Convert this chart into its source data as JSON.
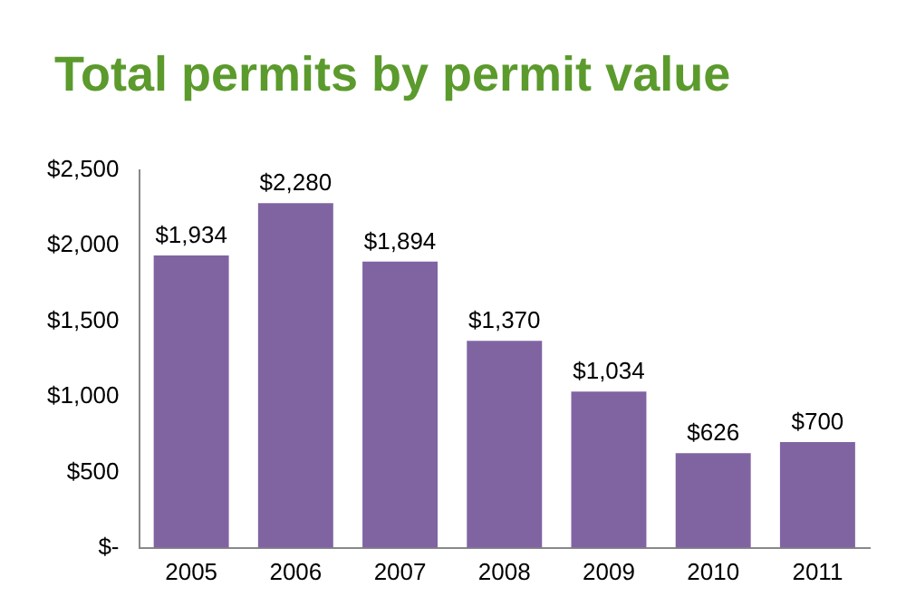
{
  "chart_data": {
    "type": "bar",
    "title": "Total permits by permit value",
    "categories": [
      "2005",
      "2006",
      "2007",
      "2008",
      "2009",
      "2010",
      "2011"
    ],
    "values": [
      1934,
      2280,
      1894,
      1370,
      1034,
      626,
      700
    ],
    "value_labels": [
      "$1,934",
      "$2,280",
      "$1,894",
      "$1,370",
      "$1,034",
      "$626",
      "$700"
    ],
    "color": "#8064a2",
    "ylim": [
      0,
      2500
    ],
    "yticks": [
      {
        "value": 0,
        "label": "$-"
      },
      {
        "value": 500,
        "label": "$500"
      },
      {
        "value": 1000,
        "label": "$1,000"
      },
      {
        "value": 1500,
        "label": "$1,500"
      },
      {
        "value": 2000,
        "label": "$2,000"
      },
      {
        "value": 2500,
        "label": "$2,500"
      }
    ],
    "grid": false,
    "legend": false
  }
}
